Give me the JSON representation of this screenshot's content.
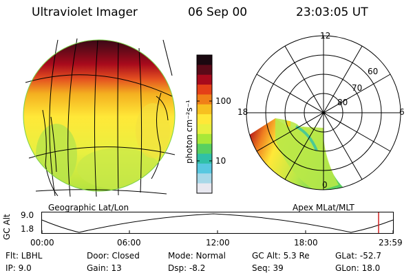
{
  "header": {
    "instrument": "Ultraviolet Imager",
    "date": "06 Sep 00",
    "time": "23:03:05 UT"
  },
  "globe_panel": {
    "caption": "Geographic Lat/Lon"
  },
  "colorbar": {
    "unit_label": "photon cm⁻²s⁻¹",
    "ticks": [
      "100",
      "10"
    ],
    "colors": [
      "#1a0810",
      "#5a0a18",
      "#a80a1c",
      "#e44018",
      "#f08018",
      "#f7c020",
      "#ffe838",
      "#e8f040",
      "#a8e838",
      "#58d060",
      "#30c0a8",
      "#58c8e0",
      "#a8d8e8",
      "#e8e8f0"
    ]
  },
  "polar_panel": {
    "caption": "Apex  MLat/MLT",
    "mlt_labels": {
      "top": "12",
      "right": "6",
      "bottom": "0",
      "left": "18"
    },
    "lat_labels": [
      "60",
      "70",
      "80"
    ]
  },
  "altitude_plot": {
    "ylabel": "GC Alt",
    "y_ticks": [
      "9.0",
      "1.8"
    ],
    "x_ticks": [
      "00:00",
      "06:00",
      "12:00",
      "18:00",
      "23:59"
    ],
    "marker_color": "#d02020"
  },
  "footer": {
    "flt": "Flt: LBHL",
    "ip": "IP:  9.0",
    "door": "Door: Closed",
    "gain": "Gain: 13",
    "mode": "Mode: Normal",
    "dsp": "Dsp:   -8.2",
    "gc_alt": "GC Alt: 5.3 Re",
    "seq": "Seq: 39",
    "glat": "GLat:  -52.7",
    "glon": "GLon:  18.0"
  }
}
